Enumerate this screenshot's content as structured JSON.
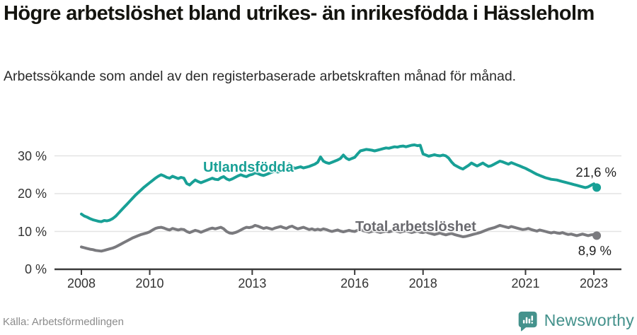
{
  "header": {
    "title": "Högre arbetslöshet bland utrikes- än inrikesfödda i Hässleholm",
    "subtitle": "Arbetssökande som andel av den registerbaserade arbetskraften månad för månad."
  },
  "footer": {
    "source": "Källa: Arbetsförmedlingen",
    "brand": "Newsworthy",
    "brand_color": "#43918b"
  },
  "chart_data": {
    "type": "line",
    "x_unit": "month",
    "x_start": "2008-01",
    "x_end": "2023-02",
    "x_start_year": 2008,
    "x_ticks": [
      2008,
      2010,
      2013,
      2016,
      2018,
      2021,
      2023
    ],
    "y_ticks": [
      {
        "value": 0,
        "label": "0 %"
      },
      {
        "value": 10,
        "label": "10 %"
      },
      {
        "value": 20,
        "label": "20 %"
      },
      {
        "value": 30,
        "label": "30 %"
      }
    ],
    "ylim": [
      0,
      34
    ],
    "grid": true,
    "legend_position": "inline-labels",
    "series": [
      {
        "name": "Utlandsfödda",
        "color": "#18a096",
        "end_label": "21,6 %",
        "end_value": 21.6,
        "values": [
          14.6,
          14.1,
          13.8,
          13.4,
          13.1,
          12.9,
          12.7,
          12.6,
          12.9,
          12.8,
          13.0,
          13.4,
          14.0,
          14.8,
          15.6,
          16.4,
          17.2,
          18.0,
          18.8,
          19.6,
          20.3,
          21.0,
          21.7,
          22.3,
          22.9,
          23.5,
          24.1,
          24.6,
          25.0,
          24.7,
          24.3,
          24.1,
          24.6,
          24.3,
          24.0,
          24.3,
          24.1,
          22.7,
          22.3,
          23.0,
          23.6,
          23.2,
          22.9,
          23.2,
          23.5,
          23.8,
          24.1,
          23.8,
          23.7,
          24.2,
          24.5,
          23.9,
          23.6,
          23.9,
          24.3,
          24.7,
          25.0,
          24.7,
          24.5,
          24.9,
          25.1,
          25.5,
          25.3,
          25.0,
          24.8,
          25.1,
          25.4,
          25.7,
          26.0,
          25.7,
          26.0,
          26.3,
          26.6,
          27.9,
          27.1,
          26.7,
          26.9,
          27.1,
          26.8,
          27.0,
          27.2,
          27.5,
          27.8,
          28.3,
          29.7,
          28.6,
          28.2,
          28.0,
          28.3,
          28.6,
          28.9,
          29.3,
          30.2,
          29.4,
          29.0,
          29.3,
          29.6,
          30.5,
          31.3,
          31.5,
          31.7,
          31.6,
          31.5,
          31.3,
          31.5,
          31.7,
          31.9,
          32.1,
          32.0,
          32.2,
          32.4,
          32.3,
          32.5,
          32.6,
          32.4,
          32.6,
          32.8,
          32.9,
          32.7,
          32.8,
          30.5,
          30.2,
          29.9,
          30.1,
          30.3,
          30.1,
          30.0,
          30.2,
          30.0,
          29.4,
          28.4,
          27.6,
          27.2,
          26.8,
          26.5,
          27.0,
          27.5,
          28.1,
          27.7,
          27.3,
          27.7,
          28.1,
          27.6,
          27.2,
          27.4,
          27.8,
          28.2,
          28.6,
          28.4,
          28.1,
          27.8,
          28.2,
          27.9,
          27.6,
          27.3,
          27.0,
          26.7,
          26.3,
          25.9,
          25.5,
          25.1,
          24.8,
          24.5,
          24.2,
          24.0,
          23.8,
          23.7,
          23.6,
          23.4,
          23.2,
          23.0,
          22.8,
          22.6,
          22.4,
          22.2,
          22.0,
          21.8,
          21.6,
          21.8,
          22.2,
          22.6,
          21.6
        ]
      },
      {
        "name": "Total arbetslöshet",
        "color": "#7a7a7e",
        "end_label": "8,9 %",
        "end_value": 8.9,
        "values": [
          5.9,
          5.7,
          5.5,
          5.3,
          5.2,
          5.0,
          4.9,
          4.8,
          5.0,
          5.2,
          5.4,
          5.6,
          5.9,
          6.3,
          6.7,
          7.1,
          7.5,
          7.9,
          8.3,
          8.6,
          8.9,
          9.2,
          9.4,
          9.6,
          9.9,
          10.4,
          10.8,
          11.0,
          11.1,
          10.9,
          10.6,
          10.4,
          10.8,
          10.6,
          10.4,
          10.6,
          10.5,
          10.0,
          9.7,
          10.0,
          10.3,
          10.1,
          9.8,
          10.1,
          10.4,
          10.7,
          10.9,
          10.7,
          10.9,
          11.1,
          10.7,
          10.0,
          9.6,
          9.5,
          9.7,
          10.0,
          10.4,
          10.8,
          11.1,
          11.0,
          11.2,
          11.6,
          11.4,
          11.1,
          10.8,
          11.0,
          10.8,
          10.6,
          10.9,
          11.1,
          11.3,
          11.0,
          10.8,
          11.2,
          11.4,
          11.0,
          10.7,
          10.9,
          11.1,
          10.8,
          10.5,
          10.7,
          10.4,
          10.6,
          10.4,
          10.7,
          10.5,
          10.2,
          10.0,
          10.2,
          10.4,
          10.1,
          9.9,
          10.1,
          10.3,
          10.1,
          10.0,
          10.3,
          10.5,
          10.2,
          10.0,
          9.8,
          10.0,
          10.2,
          9.9,
          9.7,
          9.9,
          10.1,
          9.9,
          10.1,
          10.3,
          10.0,
          9.8,
          10.0,
          10.2,
          9.9,
          9.7,
          9.9,
          10.1,
          9.8,
          9.7,
          9.9,
          9.6,
          9.4,
          9.2,
          9.4,
          9.6,
          9.3,
          9.1,
          9.3,
          9.5,
          9.2,
          9.0,
          8.8,
          8.6,
          8.7,
          8.9,
          9.1,
          9.3,
          9.5,
          9.7,
          10.0,
          10.3,
          10.6,
          10.8,
          11.0,
          11.3,
          11.6,
          11.4,
          11.2,
          11.0,
          11.3,
          11.1,
          10.9,
          10.7,
          10.5,
          10.6,
          10.8,
          10.5,
          10.3,
          10.1,
          10.4,
          10.2,
          10.0,
          9.8,
          9.6,
          9.8,
          9.6,
          9.5,
          9.7,
          9.4,
          9.2,
          9.3,
          9.1,
          8.9,
          9.1,
          9.3,
          9.1,
          8.9,
          9.1,
          9.2,
          8.9
        ]
      }
    ]
  }
}
